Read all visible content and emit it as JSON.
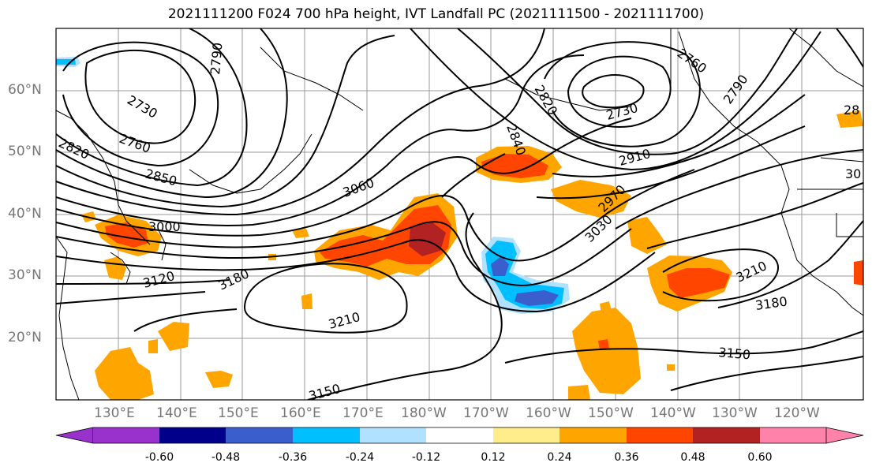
{
  "title": "2021111200 F024 700 hPa height, IVT Landfall PC (2021111500 - 2021111700)",
  "lat_labels": [
    "60°N",
    "50°N",
    "40°N",
    "30°N",
    "20°N"
  ],
  "lon_labels": [
    "130°E",
    "140°E",
    "150°E",
    "160°E",
    "170°E",
    "180°W",
    "170°W",
    "160°W",
    "150°W",
    "140°W",
    "130°W",
    "120°W"
  ],
  "contour_labels": [
    "2790",
    "2730",
    "2820",
    "2760",
    "2850",
    "3000",
    "3060",
    "3120",
    "3180",
    "3210",
    "3150",
    "2910",
    "2970",
    "3030",
    "3210",
    "3180",
    "3150",
    "2760",
    "2790",
    "2730",
    "2820",
    "2840",
    "28",
    "30"
  ],
  "colorbar": {
    "tick_labels": [
      "-0.60",
      "-0.48",
      "-0.36",
      "-0.24",
      "-0.12",
      "0.12",
      "0.24",
      "0.36",
      "0.48",
      "0.60"
    ],
    "colors": [
      "#9932cc",
      "#00008b",
      "#3a5fcd",
      "#00bfff",
      "#b0e2ff",
      "#ffffff",
      "#ffec8b",
      "#ffa500",
      "#ff4500",
      "#b22222",
      "#ff82ab"
    ]
  }
}
